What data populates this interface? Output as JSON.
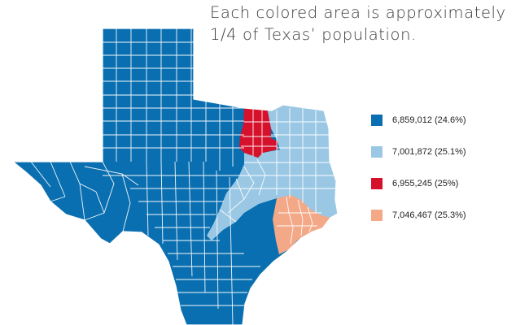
{
  "title": {
    "line1": "Each colored area is approximately",
    "line2": "1/4 of Texas’ population."
  },
  "legend": [
    {
      "label": "6,859,012 (24.6%)",
      "color": "#0a6fb0"
    },
    {
      "label": "7,001,872 (25.1%)",
      "color": "#9ac8e4"
    },
    {
      "label": "6,955,245 (25%)",
      "color": "#d5112c"
    },
    {
      "label": "7,046,467 (25.3%)",
      "color": "#f3a887"
    }
  ],
  "colors": {
    "border": "#ffffff",
    "background": "#ffffff"
  }
}
